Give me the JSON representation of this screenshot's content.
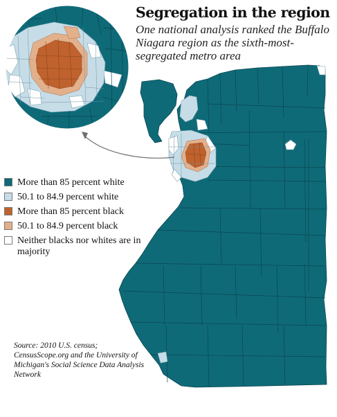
{
  "header": {
    "title": "Segregation in the region",
    "subtitle": "One national analysis ranked the Buffalo Niagara region as the sixth-most-segregated metro area"
  },
  "legend": {
    "items": [
      {
        "label": "More than 85 percent white",
        "color": "#0f6a78"
      },
      {
        "label": "50.1 to 84.9 percent white",
        "color": "#c6dde8"
      },
      {
        "label": "More than 85 percent black",
        "color": "#c0622d"
      },
      {
        "label": "50.1 to 84.9 percent black",
        "color": "#e3b08c"
      },
      {
        "label": "Neither blacks nor whites are in majority",
        "color": "#ffffff"
      }
    ]
  },
  "source": {
    "text": "Source: 2010 U.S. census; CensusScope.org and the University of Michigan's Social Science Data Analysis Network"
  },
  "colors": {
    "white_majority": "#0f6a78",
    "white_plurality": "#c6dde8",
    "black_majority": "#c0622d",
    "black_plurality": "#e3b08c",
    "neither": "#ffffff",
    "boundary": "#0a4650"
  },
  "icons": {
    "inset": "magnified-inset-circle-icon",
    "arrow": "curved-arrow-icon"
  }
}
